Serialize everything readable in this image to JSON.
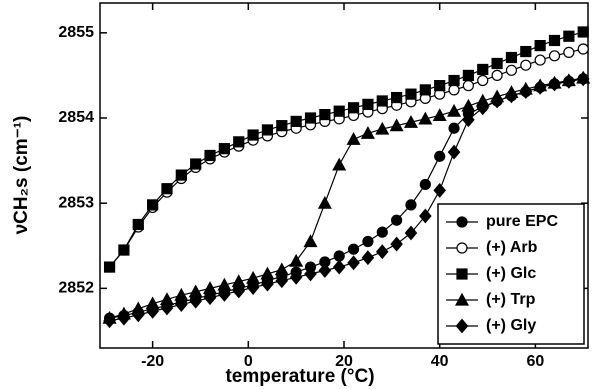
{
  "chart_data": {
    "type": "line",
    "xlabel": "temperature (°C)",
    "ylabel": "νCH₂s (cm⁻¹)",
    "xlim": [
      -31,
      71
    ],
    "ylim": [
      2851.3,
      2855.35
    ],
    "xticks": [
      -20,
      0,
      20,
      40,
      60
    ],
    "yticks": [
      2852,
      2853,
      2854,
      2855
    ],
    "legend": "lower right",
    "x": [
      -29,
      -26,
      -23,
      -20,
      -17,
      -14,
      -11,
      -8,
      -5,
      -2,
      1,
      4,
      7,
      10,
      13,
      16,
      19,
      22,
      25,
      28,
      31,
      34,
      37,
      40,
      43,
      46,
      49,
      52,
      55,
      58,
      61,
      64,
      67,
      70
    ],
    "series": [
      {
        "name": "pure EPC",
        "color": "#000000",
        "marker": "circle",
        "filled": true,
        "values": [
          2851.65,
          2851.68,
          2851.72,
          2851.76,
          2851.8,
          2851.84,
          2851.88,
          2851.92,
          2851.96,
          2852.0,
          2852.04,
          2852.09,
          2852.14,
          2852.19,
          2852.25,
          2852.31,
          2852.38,
          2852.46,
          2852.55,
          2852.66,
          2852.8,
          2852.98,
          2853.22,
          2853.55,
          2853.88,
          2854.05,
          2854.13,
          2854.2,
          2854.26,
          2854.31,
          2854.36,
          2854.4,
          2854.43,
          2854.46
        ]
      },
      {
        "name": "(+) Arb",
        "color": "#000000",
        "marker": "circle",
        "filled": false,
        "values": [
          2852.25,
          2852.45,
          2852.72,
          2852.95,
          2853.13,
          2853.29,
          2853.42,
          2853.52,
          2853.6,
          2853.67,
          2853.74,
          2853.79,
          2853.84,
          2853.88,
          2853.92,
          2853.96,
          2853.99,
          2854.03,
          2854.07,
          2854.11,
          2854.15,
          2854.19,
          2854.23,
          2854.28,
          2854.33,
          2854.38,
          2854.44,
          2854.5,
          2854.56,
          2854.62,
          2854.68,
          2854.73,
          2854.77,
          2854.81
        ]
      },
      {
        "name": "(+) Glc",
        "color": "#000000",
        "marker": "square",
        "filled": true,
        "values": [
          2852.25,
          2852.45,
          2852.75,
          2852.98,
          2853.17,
          2853.33,
          2853.46,
          2853.56,
          2853.64,
          2853.72,
          2853.8,
          2853.86,
          2853.91,
          2853.96,
          2854.0,
          2854.04,
          2854.08,
          2854.12,
          2854.16,
          2854.2,
          2854.24,
          2854.28,
          2854.33,
          2854.38,
          2854.44,
          2854.5,
          2854.57,
          2854.64,
          2854.71,
          2854.78,
          2854.85,
          2854.91,
          2854.96,
          2855.01
        ]
      },
      {
        "name": "(+) Trp",
        "color": "#000000",
        "marker": "triangle",
        "filled": true,
        "values": [
          2851.65,
          2851.7,
          2851.76,
          2851.82,
          2851.87,
          2851.92,
          2851.96,
          2852.0,
          2852.04,
          2852.08,
          2852.12,
          2852.17,
          2852.22,
          2852.32,
          2852.55,
          2853.0,
          2853.45,
          2853.75,
          2853.82,
          2853.87,
          2853.91,
          2853.95,
          2853.99,
          2854.03,
          2854.08,
          2854.14,
          2854.2,
          2854.25,
          2854.3,
          2854.34,
          2854.38,
          2854.41,
          2854.44,
          2854.47
        ]
      },
      {
        "name": "(+) Gly",
        "color": "#000000",
        "marker": "diamond",
        "filled": true,
        "values": [
          2851.62,
          2851.65,
          2851.69,
          2851.73,
          2851.77,
          2851.81,
          2851.85,
          2851.89,
          2851.93,
          2851.97,
          2852.01,
          2852.05,
          2852.09,
          2852.13,
          2852.17,
          2852.21,
          2852.25,
          2852.3,
          2852.36,
          2852.43,
          2852.52,
          2852.65,
          2852.85,
          2853.15,
          2853.6,
          2853.98,
          2854.12,
          2854.2,
          2854.26,
          2854.31,
          2854.36,
          2854.4,
          2854.43,
          2854.46
        ]
      }
    ]
  }
}
